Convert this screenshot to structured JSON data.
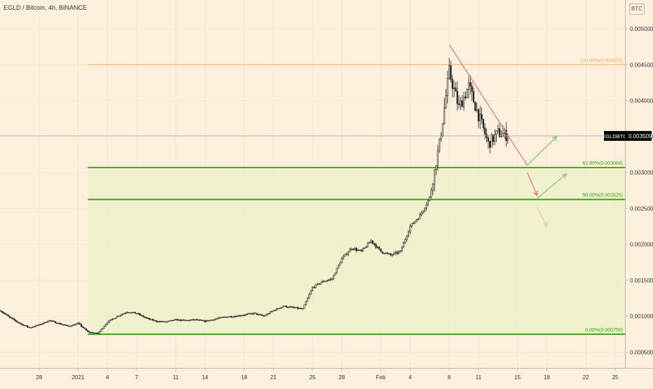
{
  "header": {
    "title": "EGLD / Bitcoin, 4h, BINANCE",
    "currency": "BTC"
  },
  "colors": {
    "background": "#fdf1de",
    "green": "#2e9e12",
    "orange": "#f5b060",
    "red_arrow": "#e8707a",
    "green_arrow": "#7dc862",
    "price_tag": "#000000"
  },
  "chart_data": {
    "type": "candlestick",
    "symbol": "EGLDBTC",
    "interval": "4h",
    "exchange": "BINANCE",
    "y_axis": {
      "range": [
        0.00028,
        0.0054
      ],
      "ticks": [
        0.0005,
        0.001,
        0.0015,
        0.002,
        0.0025,
        0.003,
        0.0035,
        0.004,
        0.0045,
        0.005
      ],
      "tick_labels": [
        "0.000500",
        "0.001000",
        "0.001500",
        "0.002000",
        "0.002500",
        "0.003000",
        "0.003500",
        "0.004000",
        "0.004500",
        "0.005000"
      ],
      "grid": true,
      "position": "right"
    },
    "x_axis": {
      "dates": [
        "2020-12-28",
        "2021-01-01",
        "2021-01-04",
        "2021-01-07",
        "2021-01-11",
        "2021-01-14",
        "2021-01-18",
        "2021-01-21",
        "2021-01-25",
        "2021-01-28",
        "2021-02-01",
        "2021-02-04",
        "2021-02-08",
        "2021-02-11",
        "2021-02-15",
        "2021-02-18",
        "2021-02-22",
        "2021-02-25"
      ],
      "tick_labels": [
        "28",
        "2021",
        "4",
        "7",
        "11",
        "14",
        "18",
        "21",
        "25",
        "28",
        "Feb",
        "4",
        "8",
        "11",
        "15",
        "18",
        "22",
        "25"
      ],
      "range": [
        "2020-12-24",
        "2021-02-26"
      ]
    },
    "last_price": {
      "label": "EGLDBTC",
      "value": "0.003509",
      "price": 0.003509
    },
    "fib_levels": [
      {
        "label": "100.00%(0.004500)",
        "price": 0.0045,
        "color": "#f5b060"
      },
      {
        "label": "61.80%(0.003068)",
        "price": 0.003068,
        "color": "#2e9e12"
      },
      {
        "label": "50.00%(0.002625)",
        "price": 0.002625,
        "color": "#2e9e12"
      },
      {
        "label": "0.00%(0.000750)",
        "price": 0.00075,
        "color": "#2e9e12"
      }
    ],
    "fib_start_date": "2021-01-02",
    "price_path": [
      [
        "2020-12-24",
        0.00108
      ],
      [
        "2020-12-25",
        0.00098
      ],
      [
        "2020-12-26",
        0.0009
      ],
      [
        "2020-12-27",
        0.00084
      ],
      [
        "2020-12-28",
        0.00088
      ],
      [
        "2020-12-29",
        0.00094
      ],
      [
        "2020-12-30",
        0.0009
      ],
      [
        "2020-12-31",
        0.00086
      ],
      [
        "2021-01-01",
        0.0009
      ],
      [
        "2021-01-02",
        0.00078
      ],
      [
        "2021-01-03",
        0.00076
      ],
      [
        "2021-01-04",
        0.00092
      ],
      [
        "2021-01-05",
        0.001
      ],
      [
        "2021-01-06",
        0.00106
      ],
      [
        "2021-01-07",
        0.00104
      ],
      [
        "2021-01-08",
        0.00097
      ],
      [
        "2021-01-09",
        0.00093
      ],
      [
        "2021-01-10",
        0.00092
      ],
      [
        "2021-01-11",
        0.00095
      ],
      [
        "2021-01-12",
        0.00094
      ],
      [
        "2021-01-13",
        0.00095
      ],
      [
        "2021-01-14",
        0.00093
      ],
      [
        "2021-01-15",
        0.00096
      ],
      [
        "2021-01-16",
        0.00099
      ],
      [
        "2021-01-17",
        0.001
      ],
      [
        "2021-01-18",
        0.00102
      ],
      [
        "2021-01-19",
        0.00104
      ],
      [
        "2021-01-20",
        0.001
      ],
      [
        "2021-01-21",
        0.00108
      ],
      [
        "2021-01-22",
        0.00114
      ],
      [
        "2021-01-23",
        0.00112
      ],
      [
        "2021-01-24",
        0.0011
      ],
      [
        "2021-01-25",
        0.0014
      ],
      [
        "2021-01-26",
        0.00148
      ],
      [
        "2021-01-27",
        0.00152
      ],
      [
        "2021-01-28",
        0.0018
      ],
      [
        "2021-01-29",
        0.00195
      ],
      [
        "2021-01-30",
        0.0019
      ],
      [
        "2021-01-31",
        0.00205
      ],
      [
        "2021-02-01",
        0.0019
      ],
      [
        "2021-02-02",
        0.00185
      ],
      [
        "2021-02-03",
        0.0019
      ],
      [
        "2021-02-04",
        0.00225
      ],
      [
        "2021-02-05",
        0.0024
      ],
      [
        "2021-02-06",
        0.00265
      ],
      [
        "2021-02-07",
        0.0034
      ],
      [
        "2021-02-08",
        0.0044
      ],
      [
        "2021-02-09",
        0.0039
      ],
      [
        "2021-02-10",
        0.0042
      ],
      [
        "2021-02-11",
        0.0038
      ],
      [
        "2021-02-12",
        0.0034
      ],
      [
        "2021-02-13",
        0.00355
      ],
      [
        "2021-02-14",
        0.00351
      ]
    ],
    "annotations": {
      "trendline": {
        "color": "#e8707a",
        "from": [
          "2021-02-08",
          0.00478
        ],
        "to": [
          "2021-02-16",
          0.0031
        ]
      },
      "arrows": [
        {
          "color": "#7dc862",
          "from": [
            "2021-02-16",
            0.0031
          ],
          "to": [
            "2021-02-19",
            0.0035
          ]
        },
        {
          "color": "#e8707a",
          "from": [
            "2021-02-16",
            0.003
          ],
          "to": [
            "2021-02-17",
            0.00268
          ]
        },
        {
          "color": "#7dc862",
          "from": [
            "2021-02-17",
            0.00264
          ],
          "to": [
            "2021-02-20",
            0.00298
          ]
        },
        {
          "color": "#f3c0c4",
          "from": [
            "2021-02-17",
            0.00252
          ],
          "to": [
            "2021-02-18",
            0.00225
          ]
        }
      ]
    }
  }
}
